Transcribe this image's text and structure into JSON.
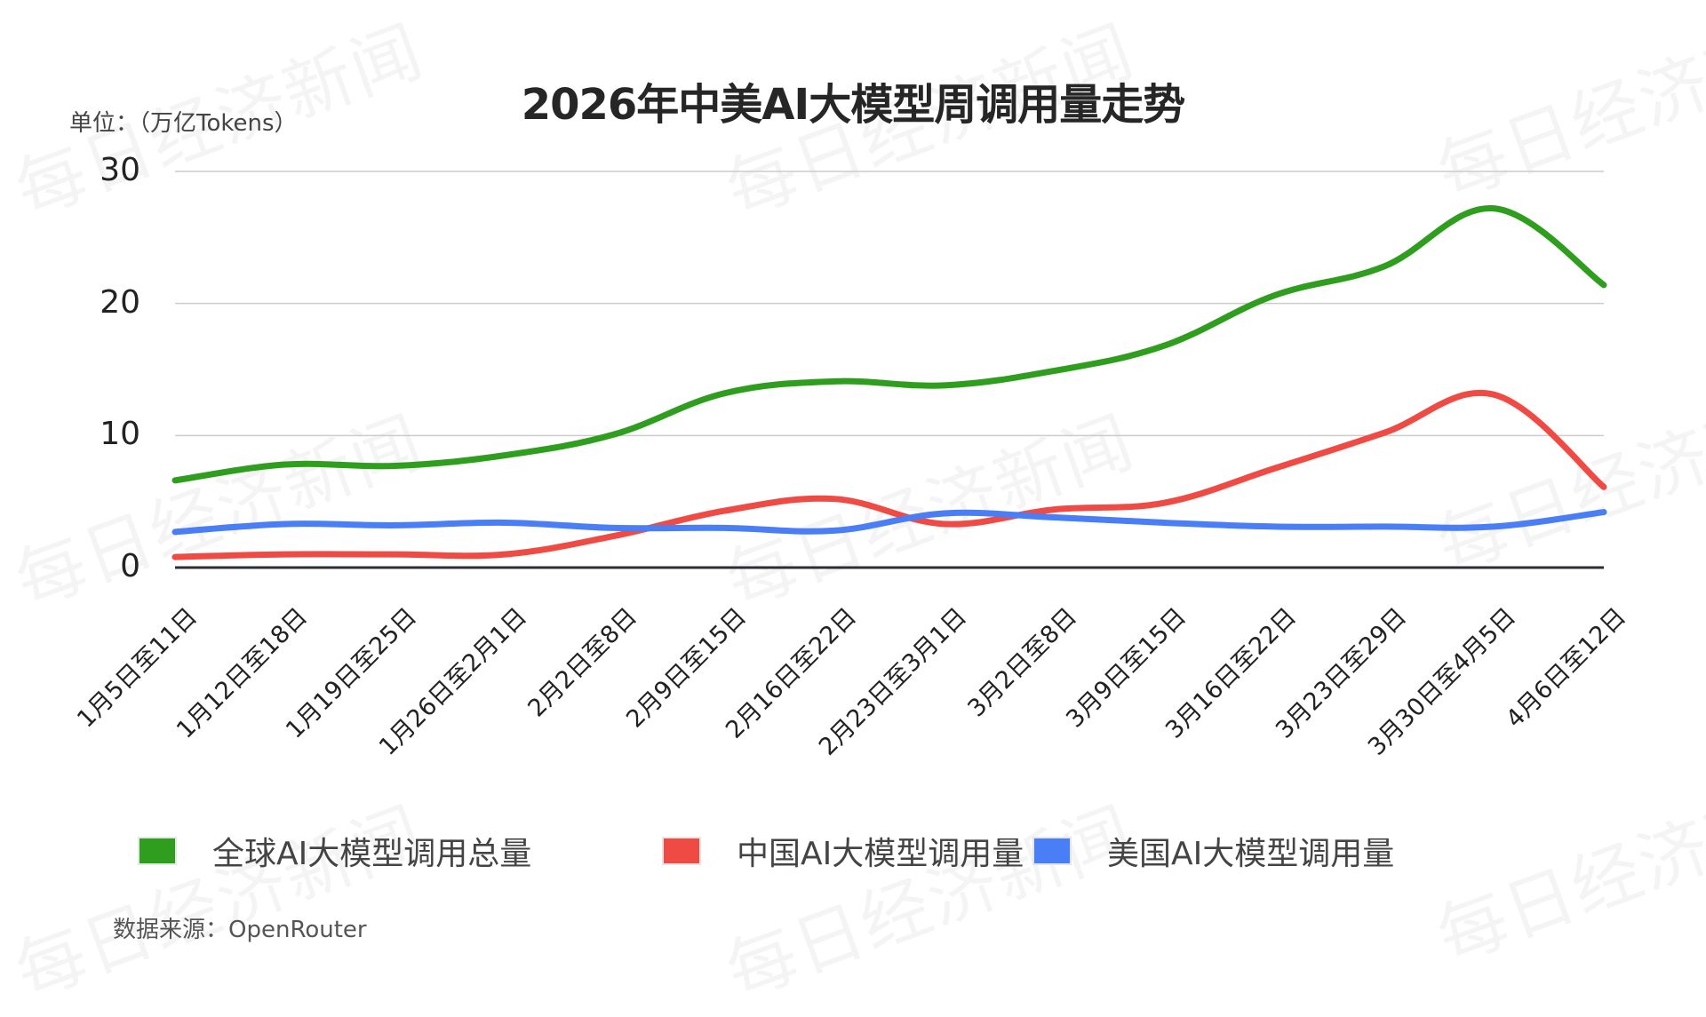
{
  "title": "2026年中美AI大模型周调用量走势",
  "unit_label": "单位：（万亿Tokens）",
  "source": "数据来源：OpenRouter",
  "watermark": "每日经济新闻",
  "colors": {
    "global": "#2f9e1f",
    "china": "#f04a44",
    "usa": "#4a7ef7",
    "grid": "#cccccc",
    "axis": "#2b2f33"
  },
  "legend": [
    {
      "label": "全球AI大模型调用总量",
      "color": "#2f9e1f"
    },
    {
      "label": "中国AI大模型调用量",
      "color": "#f04a44"
    },
    {
      "label": "美国AI大模型调用量",
      "color": "#4a7ef7"
    }
  ],
  "chart_data": {
    "type": "line",
    "title": "2026年中美AI大模型周调用量走势",
    "xlabel": "",
    "ylabel": "万亿Tokens",
    "ylim": [
      0,
      30
    ],
    "yticks": [
      0,
      10,
      20,
      30
    ],
    "grid": true,
    "legend_position": "bottom",
    "smooth": true,
    "categories": [
      "1月5日至11日",
      "1月12日至18日",
      "1月19日至25日",
      "1月26日至2月1日",
      "2月2日至8日",
      "2月9日至15日",
      "2月16日至22日",
      "2月23日至3月1日",
      "3月2日至8日",
      "3月9日至15日",
      "3月16日至22日",
      "3月23日至29日",
      "3月30日至4月5日",
      "4月6日至12日"
    ],
    "series": [
      {
        "name": "全球AI大模型调用总量",
        "color": "#2f9e1f",
        "values": [
          6.6,
          7.8,
          7.7,
          8.5,
          10.1,
          13.2,
          14.1,
          13.8,
          14.9,
          16.8,
          20.6,
          22.8,
          27.2,
          21.4
        ]
      },
      {
        "name": "中国AI大模型调用量",
        "color": "#f04a44",
        "values": [
          0.8,
          1.0,
          1.0,
          1.0,
          2.4,
          4.3,
          5.2,
          3.3,
          4.4,
          4.9,
          7.5,
          10.2,
          13.1,
          6.1
        ]
      },
      {
        "name": "美国AI大模型调用量",
        "color": "#4a7ef7",
        "values": [
          2.7,
          3.3,
          3.2,
          3.4,
          3.0,
          3.0,
          2.8,
          4.1,
          3.8,
          3.4,
          3.1,
          3.1,
          3.1,
          4.2
        ]
      }
    ]
  }
}
